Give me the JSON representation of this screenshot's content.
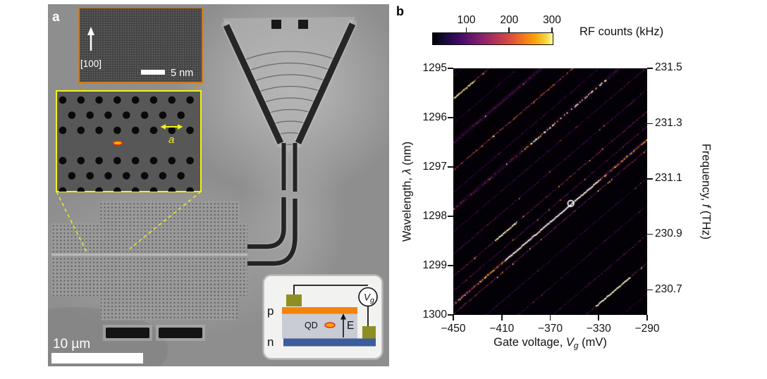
{
  "figure": {
    "panel_a": {
      "label": "a",
      "tem_inset": {
        "direction_label": "[100]",
        "scalebar_label": "5 nm"
      },
      "phc_inset": {
        "lattice_label": "a"
      },
      "scalebar_label": "10 µm",
      "circuit": {
        "p_label": "p",
        "n_label": "n",
        "qd_label": "QD",
        "field_label": "E",
        "vg_var": "V",
        "vg_sub": "g"
      }
    },
    "panel_b": {
      "label": "b",
      "colorbar": {
        "label": "RF counts (kHz)",
        "tick_labels": [
          "100",
          "200",
          "300"
        ],
        "tick_values": [
          100,
          200,
          300
        ],
        "range": [
          20,
          300
        ],
        "colormap": "inferno"
      },
      "xaxis": {
        "pre": "Gate voltage, ",
        "var": "V",
        "sub": "g",
        "post": " (mV)",
        "tick_labels": [
          "−450",
          "−410",
          "−370",
          "−330",
          "−290"
        ],
        "tick_values": [
          -450,
          -410,
          -370,
          -330,
          -290
        ],
        "range": [
          -450,
          -290
        ]
      },
      "yaxis_left": {
        "pre": "Wavelength, ",
        "var": "λ",
        "post": " (nm)",
        "tick_labels": [
          "1295",
          "1296",
          "1297",
          "1298",
          "1299",
          "1300"
        ],
        "tick_values": [
          1295,
          1296,
          1297,
          1298,
          1299,
          1300
        ],
        "range": [
          1295,
          1300
        ]
      },
      "yaxis_right": {
        "pre": "Frequency, ",
        "var": "f",
        "post": " (THz)",
        "tick_labels": [
          "231.5",
          "231.3",
          "231.1",
          "230.9",
          "230.7"
        ],
        "tick_values": [
          231.5,
          231.3,
          231.1,
          230.9,
          230.7
        ]
      }
    }
  },
  "chart_data": {
    "type": "heatmap",
    "title": "RF counts vs gate voltage and wavelength",
    "xlabel": "Gate voltage, Vg (mV)",
    "ylabel_left": "Wavelength, λ (nm)",
    "ylabel_right": "Frequency, f (THz)",
    "zlabel": "RF counts (kHz)",
    "x_range_mV": [
      -450,
      -290
    ],
    "y_range_nm": [
      1295,
      1300
    ],
    "z_range_kHz": [
      20,
      300
    ],
    "colormap": "inferno",
    "background_counts": "near zero (dark)",
    "marker": {
      "vg_mV": -353,
      "wavelength_nm": 1297.74,
      "symbol": "white open circle"
    },
    "slope_nm_per_mV": -0.0209,
    "lines_note": "diagonal resonance lines; l0 = wavelength (nm) at Vg = -450 mV; i = relative brightness 0-1; segs = [Vg_start, Vg_end, extra_brightness]",
    "lines": [
      {
        "l0": 1295.15,
        "i": 0.3
      },
      {
        "l0": 1295.6,
        "i": 0.55,
        "segs": [
          [
            -450,
            -432,
            0.7
          ]
        ]
      },
      {
        "l0": 1296.1,
        "i": 0.25
      },
      {
        "l0": 1296.5,
        "i": 0.4,
        "glow": true
      },
      {
        "l0": 1297.05,
        "i": 0.6
      },
      {
        "l0": 1297.5,
        "i": 0.3
      },
      {
        "l0": 1297.85,
        "i": 0.5,
        "dashed": true,
        "glow": true,
        "segs": [
          [
            -392,
            -324,
            0.9
          ]
        ]
      },
      {
        "l0": 1298.3,
        "i": 0.3
      },
      {
        "l0": 1298.75,
        "i": 0.35
      },
      {
        "l0": 1299.2,
        "i": 0.45,
        "segs": [
          [
            -416,
            -398,
            1.0
          ]
        ]
      },
      {
        "l0": 1299.5,
        "i": 0.35
      },
      {
        "l0": 1299.77,
        "i": 0.75,
        "glow": true,
        "segs": [
          [
            -408,
            -330,
            1.0
          ]
        ]
      },
      {
        "l0": 1299.97,
        "i": 0.45
      },
      {
        "l0": 1300.55,
        "i": 0.3
      },
      {
        "l0": 1301.1,
        "i": 0.3
      },
      {
        "l0": 1301.7,
        "i": 0.35,
        "segs": [
          [
            -450,
            -428,
            0.6
          ]
        ]
      },
      {
        "l0": 1302.27,
        "i": 0.4,
        "segs": [
          [
            -333,
            -304,
            1.0
          ]
        ]
      },
      {
        "l0": 1302.9,
        "i": 0.3
      },
      {
        "l0": 1303.6,
        "i": 0.25
      }
    ]
  }
}
